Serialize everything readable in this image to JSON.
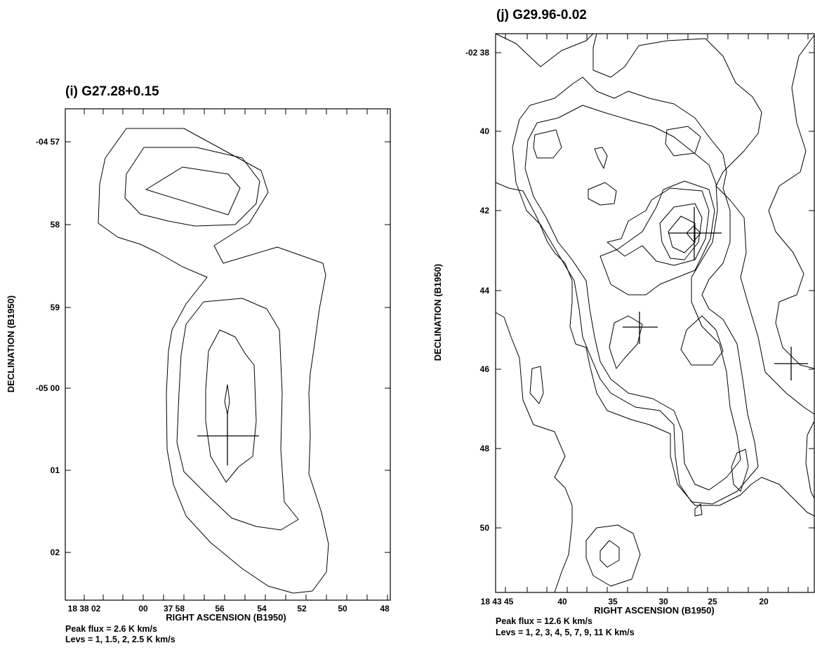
{
  "chart_data": [
    {
      "type": "contour",
      "title": "(i) G27.28+0.15",
      "xlabel": "RIGHT ASCENSION (B1950)",
      "ylabel": "DECLINATION (B1950)",
      "x_tick_labels": [
        "18 38 02",
        "00",
        "37 58",
        "56",
        "54",
        "52",
        "50",
        "48"
      ],
      "y_tick_labels": [
        "-04 57",
        "58",
        "59",
        "-05 00",
        "01",
        "02"
      ],
      "peak_flux": "Peak flux =  2.6 K km/s",
      "levels_text": "Levs = 1, 1.5, 2, 2.5 K km/s",
      "levels": [
        1,
        1.5,
        2,
        2.5
      ]
    },
    {
      "type": "contour",
      "title": "(j) G29.96-0.02",
      "xlabel": "RIGHT ASCENSION (B1950)",
      "ylabel": "DECLINATION (B1950)",
      "x_tick_labels": [
        "18 43 45",
        "40",
        "35",
        "30",
        "25",
        "20"
      ],
      "y_tick_labels": [
        "-02 38",
        "40",
        "42",
        "44",
        "46",
        "48",
        "50"
      ],
      "peak_flux": "Peak flux =  12.6 K km/s",
      "levels_text": "Levs = 1, 2, 3, 4, 5, 7, 9, 11 K km/s",
      "levels": [
        1,
        2,
        3,
        4,
        5,
        7,
        9,
        11
      ]
    }
  ]
}
